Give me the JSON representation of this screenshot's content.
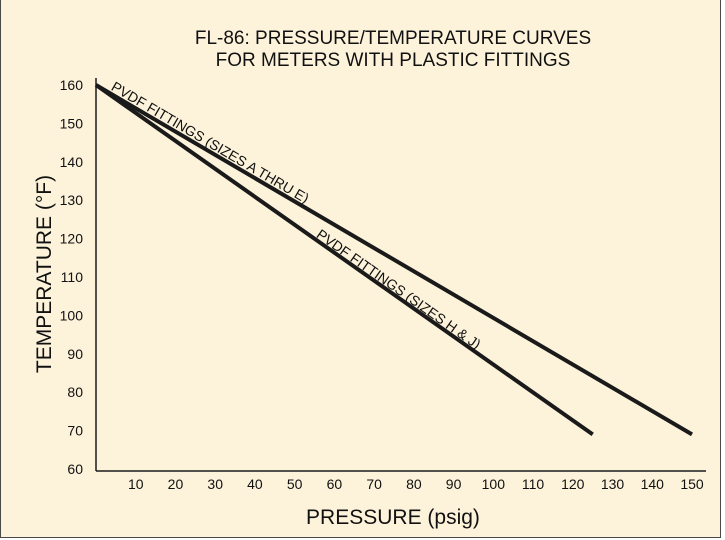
{
  "chart_data": {
    "type": "line",
    "title": [
      "FL-86: PRESSURE/TEMPERATURE CURVES",
      "FOR METERS WITH PLASTIC FITTINGS"
    ],
    "xlabel": "PRESSURE (psig)",
    "ylabel": "TEMPERATURE (°F)",
    "xlim": [
      0,
      150
    ],
    "ylim": [
      60,
      160
    ],
    "xticks": [
      10,
      20,
      30,
      40,
      50,
      60,
      70,
      80,
      90,
      100,
      110,
      120,
      130,
      140,
      150
    ],
    "yticks": [
      60,
      70,
      80,
      90,
      100,
      110,
      120,
      130,
      140,
      150,
      160
    ],
    "grid": false,
    "series": [
      {
        "name": "PVDF FITTINGS (SIZES A THRU E)",
        "x": [
          0,
          150
        ],
        "y": [
          160,
          69
        ]
      },
      {
        "name": "PVDF FITTINGS (SIZES H & J)",
        "x": [
          0,
          125
        ],
        "y": [
          160,
          69
        ]
      }
    ],
    "colors": {
      "background": "#fdf3db",
      "line": "#1a1a1a"
    }
  }
}
